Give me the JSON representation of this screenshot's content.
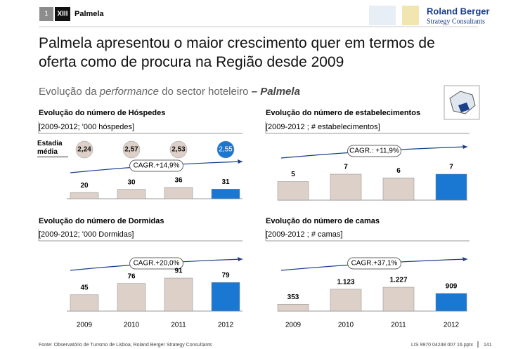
{
  "header": {
    "section": "1",
    "chapter": "XIII",
    "label": "Palmela",
    "logo_name": "Roland Berger",
    "logo_sub": "Strategy Consultants"
  },
  "title": "Palmela apresentou o maior crescimento quer em termos de oferta como de procura na Região desde 2009",
  "subtitle": {
    "lead": "Evolução da ",
    "italic": "performance",
    "rest": " do sector hoteleiro",
    "place": " – Palmela"
  },
  "chart_data": [
    {
      "type": "bar",
      "title": "Evolução do número de Hóspedes",
      "subtitle": "[2009-2012; '000 hóspedes]",
      "values": [
        20,
        30,
        36,
        31
      ],
      "colors": [
        "#ddd0c8",
        "#ddd0c8",
        "#ddd0c8",
        "#1a78d2"
      ],
      "annotation": "CAGR.+14,9%",
      "stay": {
        "label": "Estadia média",
        "values": [
          2.24,
          2.57,
          2.53,
          2.55
        ],
        "value_labels": [
          "2,24",
          "2,57",
          "2,53",
          "2,55"
        ]
      }
    },
    {
      "type": "bar",
      "title": "Evolução do número de estabelecimentos",
      "subtitle": "[2009-2012 ; # estabelecimentos]",
      "values": [
        5,
        7,
        6,
        7
      ],
      "colors": [
        "#ddd0c8",
        "#ddd0c8",
        "#ddd0c8",
        "#1a78d2"
      ],
      "annotation": "CAGR.: +11,9%"
    },
    {
      "type": "bar",
      "title": "Evolução do número de Dormidas",
      "subtitle": "[2009-2012; '000 Dormidas]",
      "categories": [
        "2009",
        "2010",
        "2011",
        "2012"
      ],
      "values": [
        45,
        76,
        91,
        79
      ],
      "colors": [
        "#ddd0c8",
        "#ddd0c8",
        "#ddd0c8",
        "#1a78d2"
      ],
      "annotation": "CAGR.+20,0%"
    },
    {
      "type": "bar",
      "title": "Evolução do número de camas",
      "subtitle": "[2009-2012 ; # camas]",
      "categories": [
        "2009",
        "2010",
        "2011",
        "2012"
      ],
      "values": [
        353,
        1123,
        1227,
        909
      ],
      "value_labels": [
        "353",
        "1.123",
        "1.227",
        "909"
      ],
      "colors": [
        "#ddd0c8",
        "#ddd0c8",
        "#ddd0c8",
        "#1a78d2"
      ],
      "annotation": "CAGR.+37,1%"
    }
  ],
  "footer": {
    "source": "Fonte: Observatório de Turismo de Lisboa, Roland Berger Strategy Consultants",
    "ref": "LIS 9970 04248 007 16.pptx",
    "page": "141"
  }
}
